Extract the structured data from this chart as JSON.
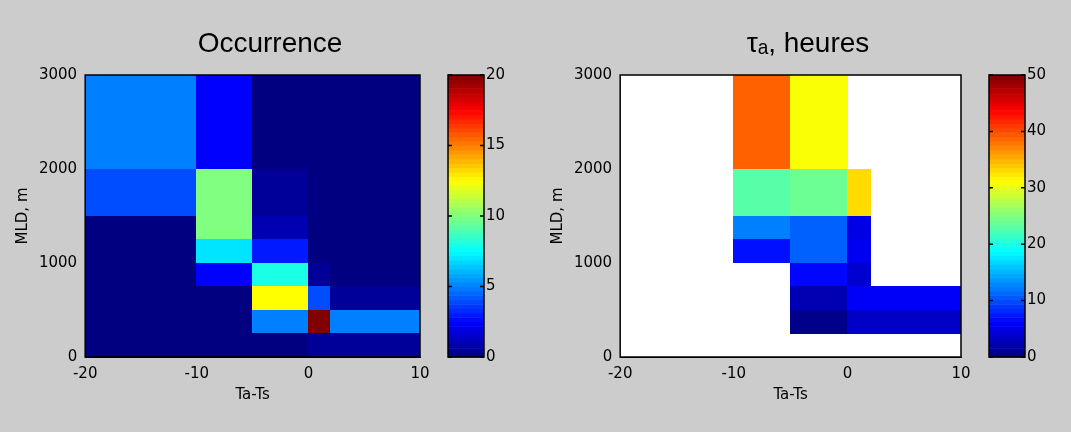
{
  "chart_data": [
    {
      "type": "heatmap",
      "title": "Occurrence",
      "xlabel": "Ta-Ts",
      "ylabel": "MLD, m",
      "x": [
        -19.5,
        -18.5,
        -17.5,
        -16.5,
        -15.5,
        -14.5,
        -13.5,
        -12.5,
        -11.5,
        -10.5,
        -9.5,
        -8.5,
        -7.5,
        -6.5,
        -5.5,
        -4.5,
        -3.5,
        -2.5,
        -1.5,
        -0.5,
        0.5,
        1.5,
        2.5,
        3.5,
        4.5,
        5.5,
        6.5,
        7.5,
        8.5,
        9.5
      ],
      "y": [
        2875,
        2625,
        2375,
        2125,
        1875,
        1625,
        1375,
        1125,
        875,
        625,
        375,
        125
      ],
      "cells": [
        [
          5,
          5,
          5,
          5,
          5,
          5,
          5,
          5,
          5,
          5,
          2.5,
          2.5,
          2.5,
          2.5,
          2.5,
          0,
          0,
          0,
          0,
          0,
          0,
          0,
          0,
          0,
          0,
          0,
          0,
          0,
          0,
          0
        ],
        [
          5,
          5,
          5,
          5,
          5,
          5,
          5,
          5,
          5,
          5,
          2.5,
          2.5,
          2.5,
          2.5,
          2.5,
          0,
          0,
          0,
          0,
          0,
          0,
          0,
          0,
          0,
          0,
          0,
          0,
          0,
          0,
          0
        ],
        [
          5,
          5,
          5,
          5,
          5,
          5,
          5,
          5,
          5,
          5,
          2.5,
          2.5,
          2.5,
          2.5,
          2.5,
          0,
          0,
          0,
          0,
          0,
          0,
          0,
          0,
          0,
          0,
          0,
          0,
          0,
          0,
          0
        ],
        [
          5,
          5,
          5,
          5,
          5,
          5,
          5,
          5,
          5,
          5,
          2.5,
          2.5,
          2.5,
          2.5,
          2.5,
          0,
          0,
          0,
          0,
          0,
          0,
          0,
          0,
          0,
          0,
          0,
          0,
          0,
          0,
          0
        ],
        [
          4,
          4,
          4,
          4,
          4,
          4,
          4,
          4,
          4,
          4,
          10,
          10,
          10,
          10,
          10,
          0.5,
          0.5,
          0.5,
          0.5,
          0.5,
          0,
          0,
          0,
          0,
          0,
          0,
          0,
          0,
          0,
          0
        ],
        [
          4,
          4,
          4,
          4,
          4,
          4,
          4,
          4,
          4,
          4,
          10,
          10,
          10,
          10,
          10,
          0.5,
          0.5,
          0.5,
          0.5,
          0.5,
          0,
          0,
          0,
          0,
          0,
          0,
          0,
          0,
          0,
          0
        ],
        [
          0,
          0,
          0,
          0,
          0,
          0,
          0,
          0,
          0,
          0,
          10,
          10,
          10,
          10,
          10,
          1,
          1,
          1,
          1,
          1,
          0,
          0,
          0,
          0,
          0,
          0,
          0,
          0,
          0,
          0
        ],
        [
          0,
          0,
          0,
          0,
          0,
          0,
          0,
          0,
          0,
          0,
          7,
          7,
          7,
          7,
          7,
          3,
          3,
          3,
          3,
          3,
          0,
          0,
          0,
          0,
          0,
          0,
          0,
          0,
          0,
          0
        ],
        [
          0,
          0,
          0,
          0,
          0,
          0,
          0,
          0,
          0,
          0,
          2.5,
          2.5,
          2.5,
          2.5,
          2.5,
          8,
          8,
          8,
          8,
          8,
          0.5,
          0.5,
          0,
          0,
          0,
          0,
          0,
          0,
          0,
          0
        ],
        [
          0,
          0,
          0,
          0,
          0,
          0,
          0,
          0,
          0,
          0,
          0,
          0,
          0,
          0,
          0,
          12.5,
          12.5,
          12.5,
          12.5,
          12.5,
          4,
          4,
          0.5,
          0.5,
          0.5,
          0.5,
          0.5,
          0.5,
          0.5,
          0.5
        ],
        [
          0,
          0,
          0,
          0,
          0,
          0,
          0,
          0,
          0,
          0,
          0,
          0,
          0,
          0,
          0,
          5,
          5,
          5,
          5,
          5,
          20,
          20,
          5,
          5,
          5,
          5,
          5,
          5,
          5,
          5
        ],
        [
          0,
          0,
          0,
          0,
          0,
          0,
          0,
          0,
          0,
          0,
          0,
          0,
          0,
          0,
          0,
          0,
          0,
          0,
          0,
          0,
          0.5,
          0.5,
          0.5,
          0.5,
          0.5,
          0.5,
          0.5,
          0.5,
          0.5,
          0.5
        ]
      ],
      "xlim": [
        -20,
        10
      ],
      "xticks": [
        -20,
        -10,
        0,
        10
      ],
      "ylim": [
        0,
        3000
      ],
      "yticks": [
        0,
        1000,
        2000,
        3000
      ],
      "clim": [
        0,
        20
      ],
      "cticks": [
        0,
        5,
        10,
        15,
        20
      ]
    },
    {
      "type": "heatmap",
      "title": "τₐ, heures",
      "xlabel": "Ta-Ts",
      "ylabel": "MLD, m",
      "x": [
        -19.5,
        -18.5,
        -17.5,
        -16.5,
        -15.5,
        -14.5,
        -13.5,
        -12.5,
        -11.5,
        -10.5,
        -9.5,
        -8.5,
        -7.5,
        -6.5,
        -5.5,
        -4.5,
        -3.5,
        -2.5,
        -1.5,
        -0.5,
        0.5,
        1.5,
        2.5,
        3.5,
        4.5,
        5.5,
        6.5,
        7.5,
        8.5,
        9.5
      ],
      "y": [
        2875,
        2625,
        2375,
        2125,
        1875,
        1625,
        1375,
        1125,
        875,
        625,
        375
      ],
      "cells": [
        [
          null,
          null,
          null,
          null,
          null,
          null,
          null,
          null,
          null,
          null,
          39,
          39,
          39,
          39,
          39,
          31,
          31,
          31,
          31,
          31,
          null,
          null,
          null,
          null,
          null,
          null,
          null,
          null,
          null,
          null
        ],
        [
          null,
          null,
          null,
          null,
          null,
          null,
          null,
          null,
          null,
          null,
          39,
          39,
          39,
          39,
          39,
          31,
          31,
          31,
          31,
          31,
          null,
          null,
          null,
          null,
          null,
          null,
          null,
          null,
          null,
          null
        ],
        [
          null,
          null,
          null,
          null,
          null,
          null,
          null,
          null,
          null,
          null,
          39,
          39,
          39,
          39,
          39,
          31,
          31,
          31,
          31,
          31,
          null,
          null,
          null,
          null,
          null,
          null,
          null,
          null,
          null,
          null
        ],
        [
          null,
          null,
          null,
          null,
          null,
          null,
          null,
          null,
          null,
          null,
          39,
          39,
          39,
          39,
          39,
          31,
          31,
          31,
          31,
          31,
          null,
          null,
          null,
          null,
          null,
          null,
          null,
          null,
          null,
          null
        ],
        [
          null,
          null,
          null,
          null,
          null,
          null,
          null,
          null,
          null,
          null,
          23,
          23,
          23,
          23,
          23,
          24,
          24,
          24,
          24,
          24,
          33,
          33,
          null,
          null,
          null,
          null,
          null,
          null,
          null,
          null
        ],
        [
          null,
          null,
          null,
          null,
          null,
          null,
          null,
          null,
          null,
          null,
          23,
          23,
          23,
          23,
          23,
          24,
          24,
          24,
          24,
          24,
          33,
          33,
          null,
          null,
          null,
          null,
          null,
          null,
          null,
          null
        ],
        [
          null,
          null,
          null,
          null,
          null,
          null,
          null,
          null,
          null,
          null,
          12.5,
          12.5,
          12.5,
          12.5,
          12.5,
          11,
          11,
          11,
          11,
          11,
          5,
          5,
          null,
          null,
          null,
          null,
          null,
          null,
          null,
          null
        ],
        [
          null,
          null,
          null,
          null,
          null,
          null,
          null,
          null,
          null,
          null,
          7,
          7,
          7,
          7,
          7,
          11,
          11,
          11,
          11,
          11,
          5.5,
          5.5,
          null,
          null,
          null,
          null,
          null,
          null,
          null,
          null
        ],
        [
          null,
          null,
          null,
          null,
          null,
          null,
          null,
          null,
          null,
          null,
          null,
          null,
          null,
          null,
          null,
          6.5,
          6.5,
          6.5,
          6.5,
          6.5,
          4,
          4,
          null,
          null,
          null,
          null,
          null,
          null,
          null,
          null
        ],
        [
          null,
          null,
          null,
          null,
          null,
          null,
          null,
          null,
          null,
          null,
          null,
          null,
          null,
          null,
          null,
          2.5,
          2.5,
          2.5,
          2.5,
          2.5,
          6,
          6,
          6,
          6,
          6,
          6,
          6,
          6,
          6,
          6
        ],
        [
          null,
          null,
          null,
          null,
          null,
          null,
          null,
          null,
          null,
          null,
          null,
          null,
          null,
          null,
          null,
          0.5,
          0.5,
          0.5,
          0.5,
          0.5,
          3.5,
          3.5,
          3.5,
          3.5,
          3.5,
          3.5,
          3.5,
          3.5,
          3.5,
          3.5
        ]
      ],
      "xlim": [
        -20,
        10
      ],
      "xticks": [
        -20,
        -10,
        0,
        10
      ],
      "ylim": [
        0,
        3000
      ],
      "yticks": [
        0,
        1000,
        2000,
        3000
      ],
      "clim": [
        0,
        50
      ],
      "cticks": [
        0,
        10,
        20,
        30,
        40,
        50
      ]
    }
  ]
}
